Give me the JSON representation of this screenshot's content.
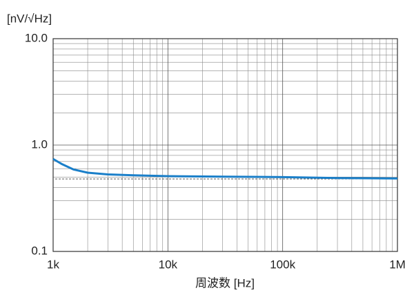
{
  "chart_data": {
    "type": "line",
    "y_label": "[nV/√Hz]",
    "x_label": "周波数 [Hz]",
    "xscale": "log",
    "yscale": "log",
    "grid": true,
    "minor_grid": true,
    "xlim": [
      1000,
      1000000
    ],
    "ylim": [
      0.1,
      10
    ],
    "xticks": [
      {
        "value": 1000,
        "label": "1k"
      },
      {
        "value": 10000,
        "label": "10k"
      },
      {
        "value": 100000,
        "label": "100k"
      },
      {
        "value": 1000000,
        "label": "1M"
      }
    ],
    "yticks": [
      0.1,
      {
        "value": 1,
        "label": "1.0"
      },
      {
        "value": 10,
        "label": "10.0"
      }
    ],
    "hline": 0.48,
    "series": [
      {
        "color": "#1a7fc9",
        "x": [
          1000,
          1200,
          1500,
          2000,
          3000,
          5000,
          10000,
          30000,
          100000,
          300000,
          1000000
        ],
        "values": [
          0.74,
          0.66,
          0.59,
          0.55,
          0.53,
          0.52,
          0.51,
          0.505,
          0.5,
          0.49,
          0.485
        ]
      }
    ]
  }
}
